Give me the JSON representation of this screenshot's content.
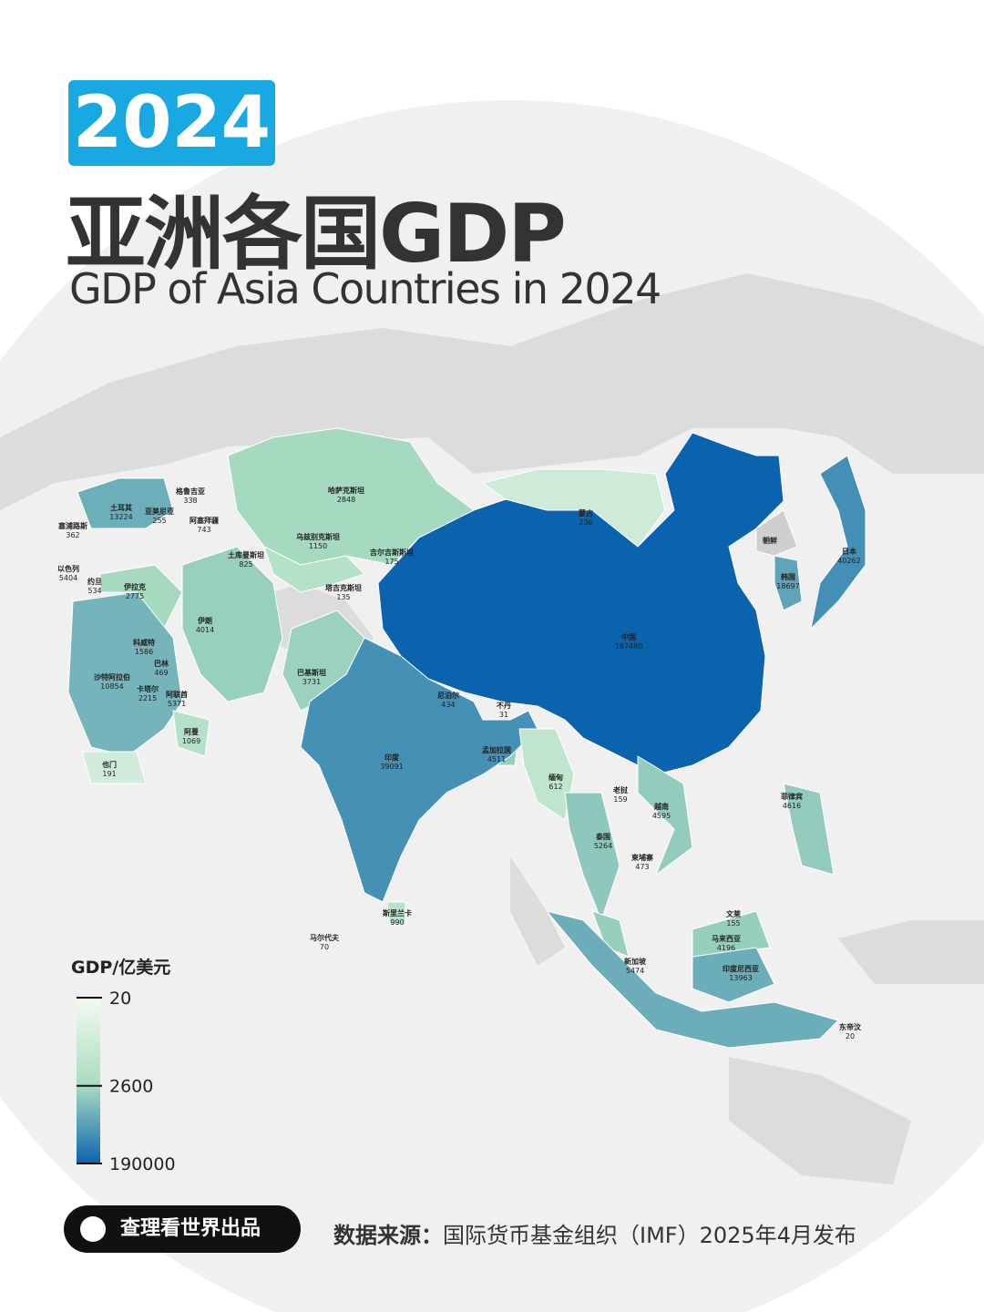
{
  "header": {
    "year": "2024",
    "title": "亚洲各国GDP",
    "subtitle": "GDP of Asia Countries in 2024"
  },
  "legend": {
    "title": "GDP/亿美元",
    "scale": "log",
    "ticks": [
      20,
      2600,
      190000
    ],
    "colors": [
      "#f4faf0",
      "#a8dcc0",
      "#0b63ae"
    ]
  },
  "countries": [
    {
      "name": "土耳其",
      "value": 13224
    },
    {
      "name": "塞浦路斯",
      "value": 362
    },
    {
      "name": "格鲁吉亚",
      "value": 338
    },
    {
      "name": "亚美尼亚",
      "value": 255
    },
    {
      "name": "阿塞拜疆",
      "value": 743
    },
    {
      "name": "哈萨克斯坦",
      "value": 2848
    },
    {
      "name": "蒙古",
      "value": 236
    },
    {
      "name": "乌兹别克斯坦",
      "value": 1150
    },
    {
      "name": "土库曼斯坦",
      "value": 825
    },
    {
      "name": "吉尔吉斯斯坦",
      "value": 175
    },
    {
      "name": "朝鲜",
      "value": null
    },
    {
      "name": "日本",
      "value": 40262
    },
    {
      "name": "韩国",
      "value": 18697
    },
    {
      "name": "以色列",
      "value": 5404
    },
    {
      "name": "约旦",
      "value": 534
    },
    {
      "name": "伊拉克",
      "value": 2775
    },
    {
      "name": "塔吉克斯坦",
      "value": 135
    },
    {
      "name": "伊朗",
      "value": 4014
    },
    {
      "name": "中国",
      "value": 187480
    },
    {
      "name": "科威特",
      "value": 1586
    },
    {
      "name": "巴林",
      "value": 469
    },
    {
      "name": "巴基斯坦",
      "value": 3731
    },
    {
      "name": "沙特阿拉伯",
      "value": 10854
    },
    {
      "name": "卡塔尔",
      "value": 2215
    },
    {
      "name": "阿联酋",
      "value": 5371
    },
    {
      "name": "尼泊尔",
      "value": 434
    },
    {
      "name": "不丹",
      "value": 31
    },
    {
      "name": "阿曼",
      "value": 1069
    },
    {
      "name": "孟加拉国",
      "value": 4511
    },
    {
      "name": "印度",
      "value": 39091
    },
    {
      "name": "也门",
      "value": 191
    },
    {
      "name": "缅甸",
      "value": 612
    },
    {
      "name": "老挝",
      "value": 159
    },
    {
      "name": "菲律宾",
      "value": 4616
    },
    {
      "name": "越南",
      "value": 4595
    },
    {
      "name": "泰国",
      "value": 5264
    },
    {
      "name": "柬埔寨",
      "value": 473
    },
    {
      "name": "斯里兰卡",
      "value": 990
    },
    {
      "name": "文莱",
      "value": 155
    },
    {
      "name": "马尔代夫",
      "value": 70
    },
    {
      "name": "马来西亚",
      "value": 4196
    },
    {
      "name": "新加坡",
      "value": 5474
    },
    {
      "name": "印度尼西亚",
      "value": 13963
    },
    {
      "name": "东帝汶",
      "value": 20
    }
  ],
  "footer": {
    "brand": "查理看世界出品",
    "source_label": "数据来源：",
    "source": "国际货币基金组织（IMF）2025年4月发布"
  }
}
